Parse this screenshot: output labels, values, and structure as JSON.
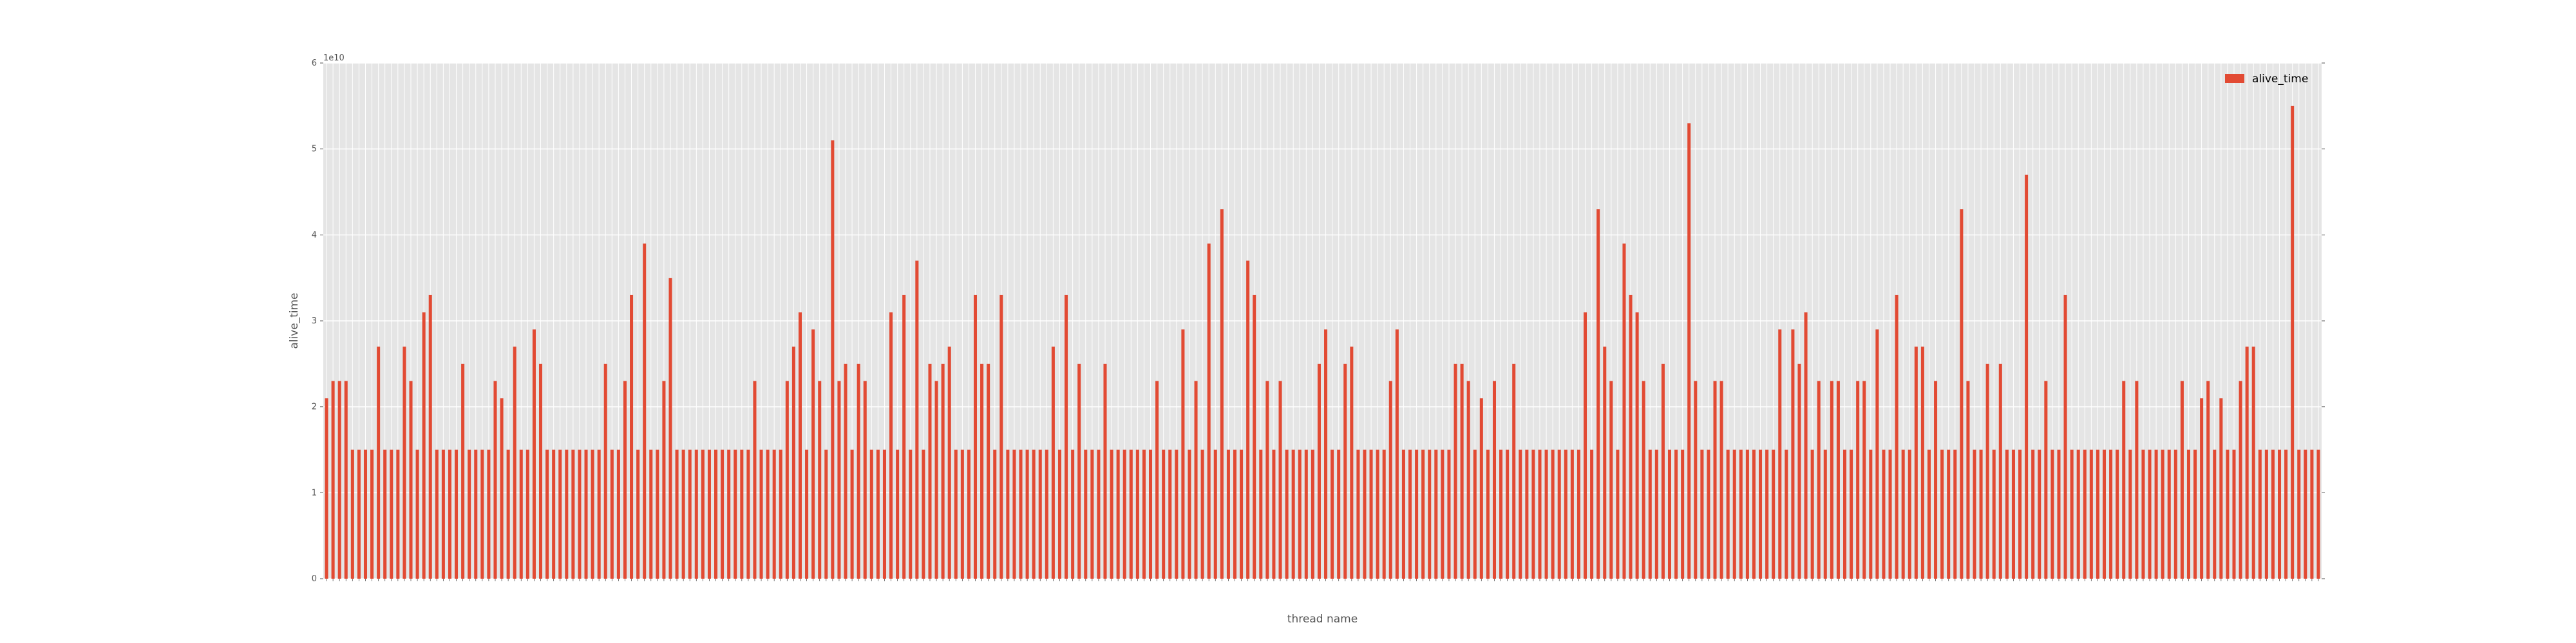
{
  "chart_data": {
    "type": "bar",
    "xlabel": "thread name",
    "ylabel": "alive_time",
    "y_offset_text": "1e10",
    "ylim": [
      0,
      6
    ],
    "yticks": [
      0,
      1,
      2,
      3,
      4,
      5,
      6
    ],
    "grid": true,
    "legend_position": "top-right",
    "series": [
      {
        "name": "alive_time",
        "color": "#E24A33",
        "values": [
          2.1,
          2.3,
          2.3,
          2.3,
          1.5,
          1.5,
          1.5,
          1.5,
          2.7,
          1.5,
          1.5,
          1.5,
          2.7,
          2.3,
          1.5,
          3.1,
          3.3,
          1.5,
          1.5,
          1.5,
          1.5,
          2.5,
          1.5,
          1.5,
          1.5,
          1.5,
          2.3,
          2.1,
          1.5,
          2.7,
          1.5,
          1.5,
          2.9,
          2.5,
          1.5,
          1.5,
          1.5,
          1.5,
          1.5,
          1.5,
          1.5,
          1.5,
          1.5,
          2.5,
          1.5,
          1.5,
          2.3,
          3.3,
          1.5,
          3.9,
          1.5,
          1.5,
          2.3,
          3.5,
          1.5,
          1.5,
          1.5,
          1.5,
          1.5,
          1.5,
          1.5,
          1.5,
          1.5,
          1.5,
          1.5,
          1.5,
          2.3,
          1.5,
          1.5,
          1.5,
          1.5,
          2.3,
          2.7,
          3.1,
          1.5,
          2.9,
          2.3,
          1.5,
          5.1,
          2.3,
          2.5,
          1.5,
          2.5,
          2.3,
          1.5,
          1.5,
          1.5,
          3.1,
          1.5,
          3.3,
          1.5,
          3.7,
          1.5,
          2.5,
          2.3,
          2.5,
          2.7,
          1.5,
          1.5,
          1.5,
          3.3,
          2.5,
          2.5,
          1.5,
          3.3,
          1.5,
          1.5,
          1.5,
          1.5,
          1.5,
          1.5,
          1.5,
          2.7,
          1.5,
          3.3,
          1.5,
          2.5,
          1.5,
          1.5,
          1.5,
          2.5,
          1.5,
          1.5,
          1.5,
          1.5,
          1.5,
          1.5,
          1.5,
          2.3,
          1.5,
          1.5,
          1.5,
          2.9,
          1.5,
          2.3,
          1.5,
          3.9,
          1.5,
          4.3,
          1.5,
          1.5,
          1.5,
          3.7,
          3.3,
          1.5,
          2.3,
          1.5,
          2.3,
          1.5,
          1.5,
          1.5,
          1.5,
          1.5,
          2.5,
          2.9,
          1.5,
          1.5,
          2.5,
          2.7,
          1.5,
          1.5,
          1.5,
          1.5,
          1.5,
          2.3,
          2.9,
          1.5,
          1.5,
          1.5,
          1.5,
          1.5,
          1.5,
          1.5,
          1.5,
          2.5,
          2.5,
          2.3,
          1.5,
          2.1,
          1.5,
          2.3,
          1.5,
          1.5,
          2.5,
          1.5,
          1.5,
          1.5,
          1.5,
          1.5,
          1.5,
          1.5,
          1.5,
          1.5,
          1.5,
          3.1,
          1.5,
          4.3,
          2.7,
          2.3,
          1.5,
          3.9,
          3.3,
          3.1,
          2.3,
          1.5,
          1.5,
          2.5,
          1.5,
          1.5,
          1.5,
          5.3,
          2.3,
          1.5,
          1.5,
          2.3,
          2.3,
          1.5,
          1.5,
          1.5,
          1.5,
          1.5,
          1.5,
          1.5,
          1.5,
          2.9,
          1.5,
          2.9,
          2.5,
          3.1,
          1.5,
          2.3,
          1.5,
          2.3,
          2.3,
          1.5,
          1.5,
          2.3,
          2.3,
          1.5,
          2.9,
          1.5,
          1.5,
          3.3,
          1.5,
          1.5,
          2.7,
          2.7,
          1.5,
          2.3,
          1.5,
          1.5,
          1.5,
          4.3,
          2.3,
          1.5,
          1.5,
          2.5,
          1.5,
          2.5,
          1.5,
          1.5,
          1.5,
          4.7,
          1.5,
          1.5,
          2.3,
          1.5,
          1.5,
          3.3,
          1.5,
          1.5,
          1.5,
          1.5,
          1.5,
          1.5,
          1.5,
          1.5,
          2.3,
          1.5,
          2.3,
          1.5,
          1.5,
          1.5,
          1.5,
          1.5,
          1.5,
          2.3,
          1.5,
          1.5,
          2.1,
          2.3,
          1.5,
          2.1,
          1.5,
          1.5,
          2.3,
          2.7,
          2.7,
          1.5,
          1.5,
          1.5,
          1.5,
          1.5,
          5.5,
          1.5,
          1.5,
          1.5,
          1.5
        ]
      }
    ]
  }
}
